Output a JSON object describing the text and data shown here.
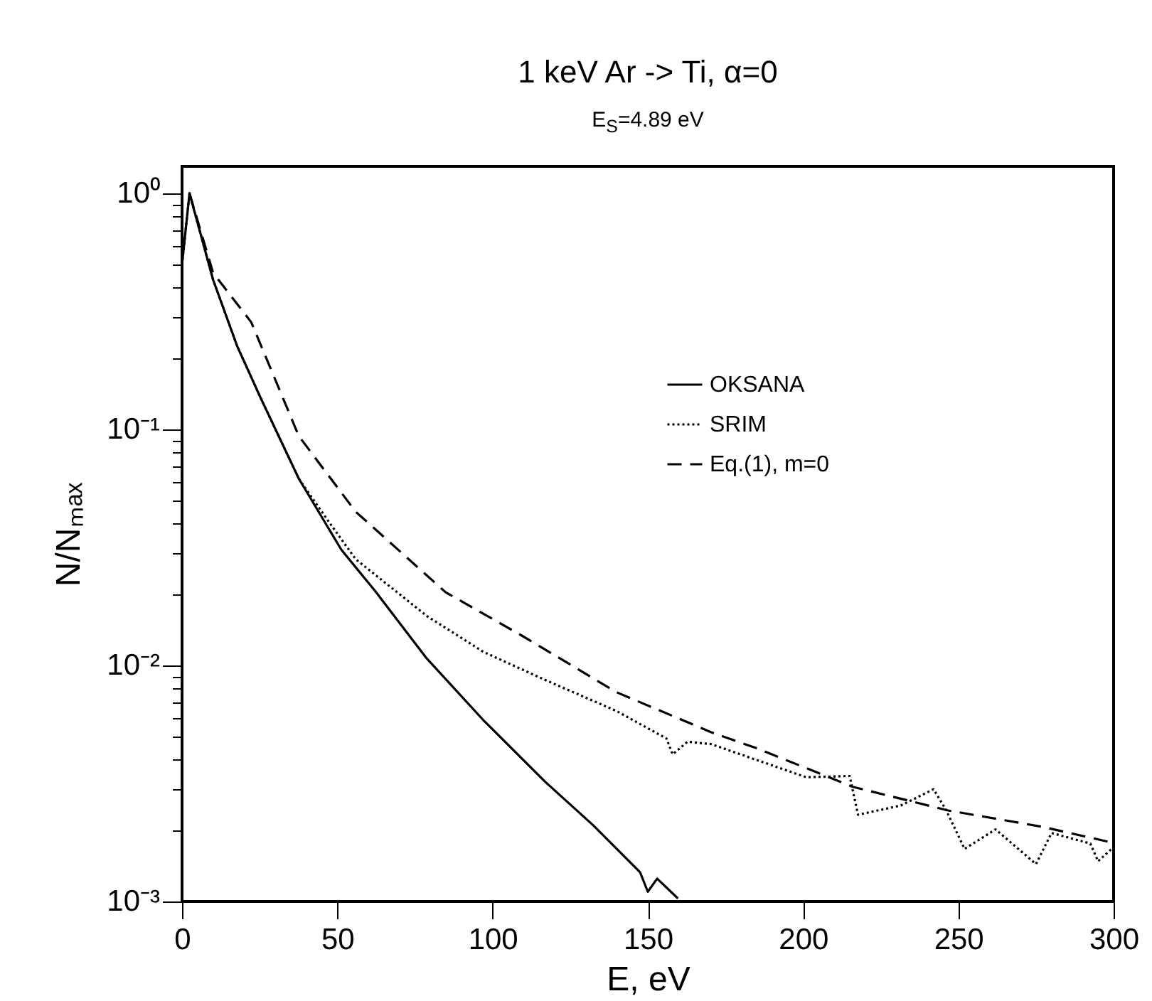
{
  "chart_data": {
    "type": "line",
    "title": "1 keV Ar -> Ti, α=0",
    "subtitle": "E$_{S}$=4.89 eV",
    "xlabel": "E, eV",
    "ylabel": "N/Nₘₐₓ",
    "log": "y",
    "xlim": [
      0,
      300
    ],
    "ylim": [
      0.001,
      1.3
    ],
    "xticks": [
      0,
      50,
      100,
      150,
      200,
      250,
      300
    ],
    "yticks": [
      {
        "value": 0.001,
        "label": "10⁻³"
      },
      {
        "value": 0.002,
        "label": null
      },
      {
        "value": 0.003,
        "label": null
      },
      {
        "value": 0.004,
        "label": null
      },
      {
        "value": 0.005,
        "label": null
      },
      {
        "value": 0.006,
        "label": null
      },
      {
        "value": 0.007,
        "label": null
      },
      {
        "value": 0.008,
        "label": null
      },
      {
        "value": 0.009,
        "label": null
      },
      {
        "value": 0.01,
        "label": "10⁻²"
      },
      {
        "value": 0.02,
        "label": null
      },
      {
        "value": 0.03,
        "label": null
      },
      {
        "value": 0.04,
        "label": null
      },
      {
        "value": 0.05,
        "label": null
      },
      {
        "value": 0.06,
        "label": null
      },
      {
        "value": 0.07,
        "label": null
      },
      {
        "value": 0.08,
        "label": null
      },
      {
        "value": 0.09,
        "label": null
      },
      {
        "value": 0.1,
        "label": "10⁻¹"
      },
      {
        "value": 0.2,
        "label": null
      },
      {
        "value": 0.3,
        "label": null
      },
      {
        "value": 0.4,
        "label": null
      },
      {
        "value": 0.5,
        "label": null
      },
      {
        "value": 0.6,
        "label": null
      },
      {
        "value": 0.7,
        "label": null
      },
      {
        "value": 0.8,
        "label": null
      },
      {
        "value": 0.9,
        "label": null
      },
      {
        "value": 1,
        "label": "10⁰"
      }
    ],
    "grid": false,
    "legend": "right",
    "marker": "none",
    "series": [
      {
        "name": "OKSANA",
        "color": "#000000",
        "line_style": "solid",
        "x": [
          0,
          2.4,
          10,
          17.7,
          25.3,
          37.6,
          51.3,
          62,
          78.8,
          97.1,
          117,
          132.3,
          147.5,
          150,
          153,
          159.7
        ],
        "values": [
          0.5,
          1,
          0.43,
          0.226,
          0.136,
          0.0618,
          0.0309,
          0.0208,
          0.0107,
          0.00585,
          0.00321,
          0.00211,
          0.00133,
          0.0011,
          0.00125,
          0.00103
        ]
      },
      {
        "name": "SRIM",
        "color": "#000000",
        "line_style": "dotted",
        "x": [
          0,
          2.4,
          10,
          17.7,
          25.3,
          37.6,
          48.2,
          55.9,
          78.8,
          97.1,
          117,
          139.9,
          156,
          158,
          162.8,
          170.4,
          201,
          215,
          217.7,
          231.5,
          242,
          246,
          252,
          262,
          275,
          280,
          292.5,
          295,
          300
        ],
        "values": [
          0.5,
          1,
          0.43,
          0.226,
          0.136,
          0.0618,
          0.039,
          0.0282,
          0.0162,
          0.0114,
          0.00867,
          0.00641,
          0.0049,
          0.0042,
          0.00475,
          0.00464,
          0.00336,
          0.0034,
          0.00233,
          0.00255,
          0.00299,
          0.00245,
          0.00167,
          0.00202,
          0.00144,
          0.00195,
          0.00176,
          0.00148,
          0.0017
        ]
      },
      {
        "name": "Eq.(1), m=0",
        "color": "#000000",
        "line_style": "dashed",
        "x": [
          2.4,
          10,
          22.3,
          37.6,
          55.9,
          84.9,
          109.3,
          139.9,
          170.4,
          185.6,
          216,
          246.7,
          277.2,
          300
        ],
        "values": [
          1,
          0.46,
          0.284,
          0.0937,
          0.0448,
          0.0204,
          0.0134,
          0.0077,
          0.00521,
          0.00443,
          0.00306,
          0.00243,
          0.00207,
          0.00177
        ]
      }
    ]
  }
}
